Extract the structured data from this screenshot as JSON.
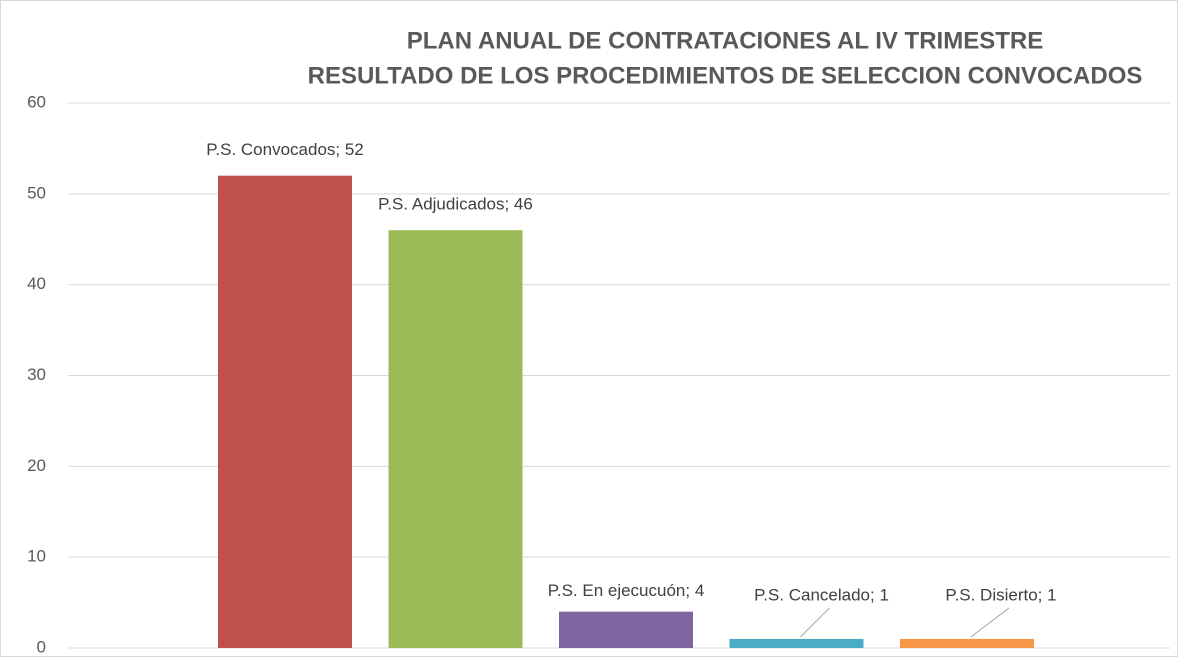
{
  "chart_data": {
    "type": "bar",
    "title": [
      "PLAN ANUAL DE CONTRATACIONES AL IV TRIMESTRE",
      "RESULTADO DE LOS PROCEDIMIENTOS DE SELECCION CONVOCADOS"
    ],
    "values": [
      52,
      46,
      4,
      1,
      1
    ],
    "value_labels": [
      "P.S. Convocados; 52",
      "P.S.  Adjudicados; 46",
      "P.S.  En ejecucuón; 4",
      "P.S.  Cancelado; 1",
      "P.S. Disierto; 1"
    ],
    "colors": [
      "#c0504d",
      "#9bbb59",
      "#8064a2",
      "#4bacc6",
      "#f79646"
    ],
    "ylim": [
      0,
      60
    ],
    "yticks": [
      0,
      10,
      20,
      30,
      40,
      50,
      60
    ],
    "grid": true
  }
}
